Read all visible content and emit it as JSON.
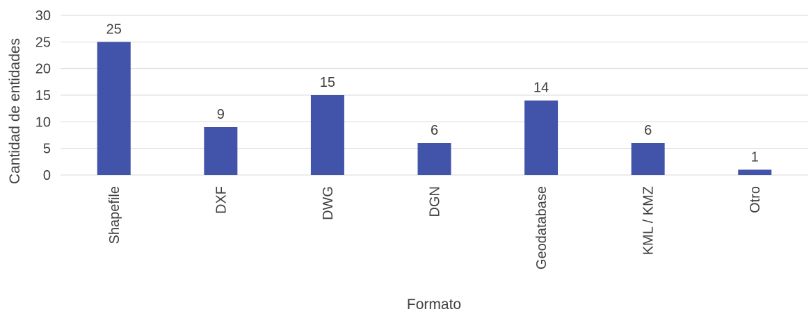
{
  "chart_data": {
    "type": "bar",
    "title": "",
    "categories": [
      "Shapefile",
      "DXF",
      "DWG",
      "DGN",
      "Geodatabase",
      "KML / KMZ",
      "Otro"
    ],
    "values": [
      25,
      9,
      15,
      6,
      14,
      6,
      1
    ],
    "xlabel": "Formato",
    "ylabel": "Cantidad de entidades",
    "ylim": [
      0,
      30
    ],
    "yticks": [
      0,
      5,
      10,
      15,
      20,
      25,
      30
    ],
    "grid": true,
    "legend": "none",
    "bar_color": "#4254a9",
    "grid_color": "#d9d9d9",
    "text_color": "#404040"
  }
}
